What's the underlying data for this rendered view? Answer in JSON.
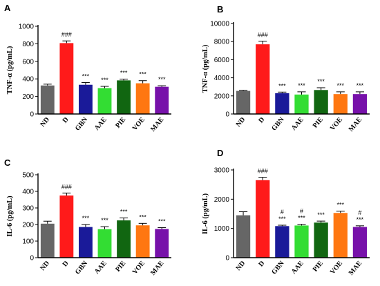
{
  "colors": {
    "ND": "#666666",
    "D": "#ff1a1a",
    "GBN": "#1a1a99",
    "AAE": "#33dd33",
    "PIE": "#116611",
    "VOE": "#ff7711",
    "MAE": "#7711aa"
  },
  "chart_data": [
    {
      "panel": "A",
      "type": "bar",
      "ylabel": "TNF-α (pg/mL)",
      "categories": [
        "ND",
        "D",
        "GBN",
        "AAE",
        "PIE",
        "VOE",
        "MAE"
      ],
      "values": [
        325,
        808,
        333,
        295,
        383,
        350,
        310
      ],
      "errors": [
        15,
        25,
        25,
        20,
        15,
        30,
        12
      ],
      "annotations": [
        "",
        "###",
        "***",
        "***",
        "***",
        "***",
        "***"
      ],
      "ylim": [
        0,
        1000
      ],
      "yticks": [
        0,
        200,
        400,
        600,
        800,
        1000
      ]
    },
    {
      "panel": "B",
      "type": "bar",
      "ylabel": "TNF-α (pg/mL)",
      "categories": [
        "ND",
        "D",
        "GBN",
        "AAE",
        "PIE",
        "VOE",
        "MAE"
      ],
      "values": [
        2550,
        7700,
        2300,
        2150,
        2650,
        2200,
        2200
      ],
      "errors": [
        80,
        350,
        120,
        300,
        250,
        250,
        250
      ],
      "annotations": [
        "",
        "###",
        "***",
        "***",
        "***",
        "***",
        "***"
      ],
      "ylim": [
        0,
        10000
      ],
      "yticks": [
        0,
        2000,
        4000,
        6000,
        8000,
        10000
      ]
    },
    {
      "panel": "C",
      "type": "bar",
      "ylabel": "IL-6 (pg/mL)",
      "categories": [
        "ND",
        "D",
        "GBN",
        "AAE",
        "PIE",
        "VOE",
        "MAE"
      ],
      "values": [
        205,
        375,
        185,
        172,
        225,
        195,
        173
      ],
      "errors": [
        15,
        15,
        15,
        15,
        15,
        12,
        8
      ],
      "annotations": [
        "",
        "###",
        "***",
        "***",
        "***",
        "***",
        "***"
      ],
      "ylim": [
        0,
        500
      ],
      "yticks": [
        0,
        100,
        200,
        300,
        400,
        500
      ]
    },
    {
      "panel": "D",
      "type": "bar",
      "ylabel": "IL-6 (pg/mL)",
      "categories": [
        "ND",
        "D",
        "GBN",
        "AAE",
        "PIE",
        "VOE",
        "MAE"
      ],
      "values": [
        1450,
        2650,
        1080,
        1100,
        1200,
        1530,
        1050
      ],
      "errors": [
        120,
        100,
        30,
        40,
        50,
        60,
        40
      ],
      "annotations": [
        "",
        "###",
        "#\n***",
        "#\n***",
        "***",
        "***",
        "#\n***"
      ],
      "ylim": [
        0,
        3000
      ],
      "yticks": [
        0,
        1000,
        2000,
        3000
      ]
    }
  ]
}
